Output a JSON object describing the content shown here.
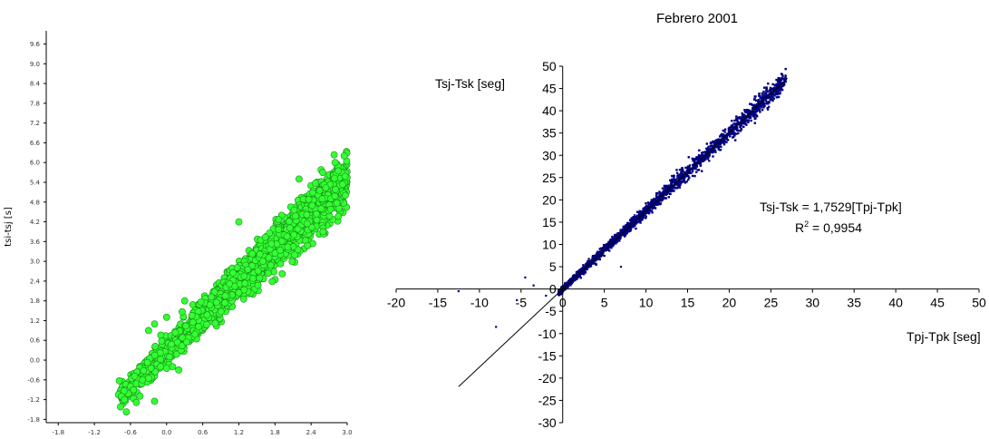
{
  "chart_data": [
    {
      "type": "scatter",
      "title": "",
      "xlabel": "",
      "ylabel": "tsi-tsj [s]",
      "xlim": [
        -2.0,
        3.0
      ],
      "ylim": [
        -1.9,
        10.0
      ],
      "x_ticks": [
        "-1.8",
        "-1.2",
        "-0.6",
        "0.0",
        "0.6",
        "1.2",
        "1.8",
        "2.4",
        "3.0"
      ],
      "y_ticks": [
        "-1.8",
        "-1.2",
        "-0.6",
        "0.0",
        "0.6",
        "1.2",
        "1.8",
        "2.4",
        "3.0",
        "3.6",
        "4.2",
        "4.8",
        "5.4",
        "6.0",
        "6.6",
        "7.2",
        "7.8",
        "8.4",
        "9.0",
        "9.6"
      ],
      "marker_color": "#33ff33",
      "marker_edge_color": "#1a8c1a",
      "point_cloud": {
        "x_range": [
          -0.8,
          3.0
        ],
        "trend_slope": 1.75,
        "trend_intercept": 0.25
      },
      "points": [
        [
          -0.8,
          -1.05
        ],
        [
          -0.75,
          -1.1
        ],
        [
          -0.7,
          -1.2
        ],
        [
          -0.6,
          -0.8
        ],
        [
          -0.55,
          -0.9
        ],
        [
          -0.4,
          -0.6
        ],
        [
          -0.3,
          -0.55
        ],
        [
          -0.2,
          -1.25
        ],
        [
          -0.1,
          -0.2
        ],
        [
          0.0,
          -0.25
        ],
        [
          0.05,
          0.1
        ],
        [
          0.1,
          -0.2
        ],
        [
          0.2,
          -0.3
        ],
        [
          -0.3,
          0.9
        ],
        [
          -0.2,
          1.1
        ],
        [
          0.0,
          1.3
        ],
        [
          0.3,
          1.8
        ],
        [
          1.2,
          4.2
        ],
        [
          1.6,
          3.0
        ],
        [
          2.2,
          5.5
        ],
        [
          2.6,
          3.9
        ],
        [
          2.95,
          6.2
        ],
        [
          2.8,
          6.0
        ]
      ]
    },
    {
      "type": "scatter",
      "title": "Febrero 2001",
      "xlabel": "Tpj-Tpk [seg]",
      "ylabel": "Tsj-Tsk [seg]",
      "xlim": [
        -20,
        50
      ],
      "ylim": [
        -30,
        50
      ],
      "x_ticks": [
        "-20",
        "-15",
        "-10",
        "-5",
        "0",
        "5",
        "10",
        "15",
        "20",
        "25",
        "30",
        "35",
        "40",
        "45",
        "50"
      ],
      "y_ticks": [
        "50",
        "45",
        "40",
        "35",
        "30",
        "25",
        "20",
        "15",
        "10",
        "5",
        "0",
        "-5",
        "-10",
        "-15",
        "-20",
        "-25",
        "-30"
      ],
      "marker_color": "#000080",
      "point_cloud": {
        "x_range": [
          -0.5,
          26.8
        ],
        "trend_slope": 1.7529,
        "trend_intercept": 0
      },
      "trendline": {
        "slope": 1.7529,
        "intercept": 0,
        "x_range": [
          -12.5,
          27
        ]
      },
      "points": [
        [
          -4.5,
          2.6
        ],
        [
          -5.5,
          -2.5
        ],
        [
          -8.0,
          -8.5
        ],
        [
          -12.5,
          -0.5
        ],
        [
          -3.5,
          0.8
        ],
        [
          -2.0,
          -1.5
        ],
        [
          7.0,
          5.0
        ],
        [
          26.0,
          45.5
        ],
        [
          26.8,
          46.5
        ],
        [
          23.0,
          42.5
        ]
      ],
      "annotation": {
        "equation": "Tsj-Tsk = 1,7529[Tpj-Tpk]",
        "r2_prefix": "R",
        "r2_superscript": "2",
        "r2_value": " = 0,9954"
      }
    }
  ]
}
